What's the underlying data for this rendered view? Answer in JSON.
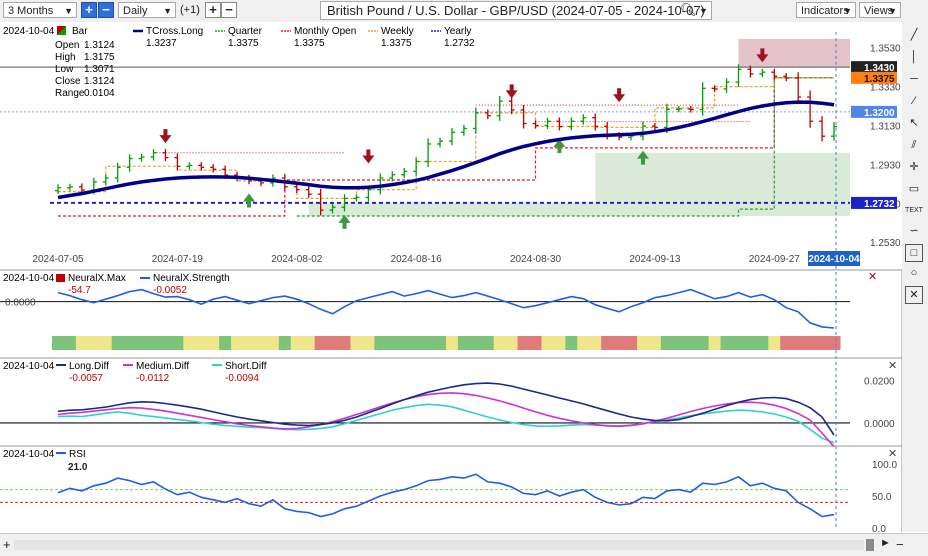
{
  "toolbar": {
    "range": "3 Months",
    "interval": "Daily",
    "offset": "(+1)",
    "title": "British Pound / U.S. Dollar - GBP/USD (2024-07-05 - 2024-10-07)",
    "indicators_label": "Indicators",
    "views_label": "Views"
  },
  "colors": {
    "up": "#00a000",
    "down": "#c00000",
    "tcross": "#00008b",
    "quarter": "#2e9d2e",
    "monthly": "#e02020",
    "weekly": "#f0a030",
    "yearly": "#2222cc"
  },
  "main": {
    "date": "2024-10-04",
    "bar_label": "Bar",
    "ohlc_labels": [
      "Open",
      "High",
      "Low",
      "Close",
      "Range"
    ],
    "ohlc_values": [
      "1.3124",
      "1.3175",
      "1.3071",
      "1.3124",
      "0.0104"
    ],
    "legend": [
      {
        "name": "TCross.Long",
        "value": "1.3237"
      },
      {
        "name": "Quarter",
        "value": "1.3375"
      },
      {
        "name": "Monthly Open",
        "value": "1.3375"
      },
      {
        "name": "Weekly",
        "value": "1.3375"
      },
      {
        "name": "Yearly",
        "value": "1.2732"
      }
    ],
    "price_ticks": [
      "1.3530",
      "1.3330",
      "1.3130",
      "1.2930",
      "1.2730",
      "1.2530"
    ],
    "tags": [
      "1.3430",
      "1.3375",
      "1.3200",
      "1.2732"
    ],
    "date_ticks": [
      "2024-07-05",
      "2024-07-19",
      "2024-08-02",
      "2024-08-16",
      "2024-08-30",
      "2024-09-13",
      "2024-09-27"
    ],
    "last_date": "2024-10-04"
  },
  "neural": {
    "date": "2024-10-04",
    "labels": [
      "NeuralX.Max",
      "NeuralX.Strength"
    ],
    "values": [
      "-54.7",
      "-0.0052"
    ],
    "tick": "0.0000"
  },
  "diff": {
    "date": "2024-10-04",
    "labels": [
      "Long.Diff",
      "Medium.Diff",
      "Short.Diff"
    ],
    "values": [
      "-0.0057",
      "-0.0112",
      "-0.0094"
    ],
    "ticks": [
      "0.0200",
      "0.0000"
    ]
  },
  "rsi": {
    "date": "2024-10-04",
    "label": "RSI",
    "value": "21.0",
    "ticks": [
      "100.0",
      "50.0",
      "0.0"
    ]
  },
  "chart_data": [
    {
      "type": "ohlc",
      "title": "British Pound / U.S. Dollar - GBP/USD (2024-07-05 - 2024-10-07)",
      "ylim": [
        1.249,
        1.359
      ],
      "x": [
        "07-05",
        "07-08",
        "07-09",
        "07-10",
        "07-11",
        "07-12",
        "07-15",
        "07-16",
        "07-17",
        "07-18",
        "07-19",
        "07-22",
        "07-23",
        "07-24",
        "07-25",
        "07-26",
        "07-29",
        "07-30",
        "07-31",
        "08-01",
        "08-02",
        "08-05",
        "08-06",
        "08-07",
        "08-08",
        "08-09",
        "08-12",
        "08-13",
        "08-14",
        "08-15",
        "08-16",
        "08-19",
        "08-20",
        "08-21",
        "08-22",
        "08-23",
        "08-26",
        "08-27",
        "08-28",
        "08-29",
        "08-30",
        "09-02",
        "09-03",
        "09-04",
        "09-05",
        "09-06",
        "09-09",
        "09-10",
        "09-11",
        "09-12",
        "09-13",
        "09-16",
        "09-17",
        "09-18",
        "09-19",
        "09-20",
        "09-23",
        "09-24",
        "09-25",
        "09-26",
        "09-27",
        "09-30",
        "10-01",
        "10-02",
        "10-03",
        "10-04"
      ],
      "close": [
        1.281,
        1.2815,
        1.2798,
        1.284,
        1.286,
        1.2915,
        1.296,
        1.2968,
        1.299,
        1.2965,
        1.292,
        1.2925,
        1.2915,
        1.2905,
        1.2875,
        1.286,
        1.2845,
        1.2835,
        1.286,
        1.2815,
        1.28,
        1.2777,
        1.2695,
        1.271,
        1.2755,
        1.276,
        1.28,
        1.286,
        1.2877,
        1.2894,
        1.2945,
        1.3035,
        1.305,
        1.3095,
        1.3115,
        1.3195,
        1.318,
        1.3255,
        1.321,
        1.314,
        1.313,
        1.3152,
        1.3124,
        1.3152,
        1.317,
        1.3126,
        1.308,
        1.307,
        1.3076,
        1.3127,
        1.312,
        1.3213,
        1.3215,
        1.3212,
        1.3321,
        1.3318,
        1.3353,
        1.3419,
        1.3395,
        1.3404,
        1.3383,
        1.3374,
        1.3276,
        1.3152,
        1.3075,
        1.3124
      ],
      "tcross_long": [
        1.276,
        1.277,
        1.278,
        1.2792,
        1.2805,
        1.2818,
        1.283,
        1.284,
        1.2848,
        1.2855,
        1.286,
        1.2863,
        1.2865,
        1.2866,
        1.2865,
        1.2863,
        1.2859,
        1.2853,
        1.2847,
        1.284,
        1.2833,
        1.2826,
        1.2818,
        1.2813,
        1.281,
        1.281,
        1.2813,
        1.2818,
        1.2826,
        1.2836,
        1.2848,
        1.2862,
        1.288,
        1.2898,
        1.2918,
        1.294,
        1.2962,
        1.2985,
        1.3005,
        1.3022,
        1.3036,
        1.3048,
        1.3058,
        1.3066,
        1.3072,
        1.3077,
        1.308,
        1.3082,
        1.3085,
        1.309,
        1.3098,
        1.3108,
        1.312,
        1.3134,
        1.315,
        1.3167,
        1.3185,
        1.3202,
        1.3218,
        1.323,
        1.324,
        1.3247,
        1.325,
        1.3249,
        1.3244,
        1.3237
      ],
      "levels": {
        "Quarter": 1.3375,
        "Monthly Open": 1.3375,
        "Weekly": 1.3375,
        "Yearly": 1.2732,
        "tags": [
          1.343,
          1.32
        ]
      }
    },
    {
      "type": "line",
      "title": "NeuralX",
      "series": [
        {
          "name": "NeuralX.Max",
          "last": -54.7
        },
        {
          "name": "NeuralX.Strength",
          "last": -0.0052,
          "values": [
            0.0018,
            0.0012,
            0.0004,
            -0.0002,
            0.0005,
            0.0012,
            0.002,
            0.0024,
            0.0016,
            0.0009,
            0.001,
            0.0004,
            -0.0005,
            0.0005,
            0.001,
            0.0003,
            -0.0004,
            0.0002,
            0.0008,
            0.0011,
            0.0005,
            -0.0004,
            -0.0015,
            -0.0024,
            -0.001,
            0.0002,
            0.0008,
            0.0014,
            0.002,
            0.0011,
            0.0016,
            0.0022,
            0.0015,
            0.0008,
            0.0012,
            0.0018,
            0.0011,
            0.0004,
            -0.0004,
            -0.0012,
            -0.0008,
            -0.0002,
            0.0004,
            0.001,
            0.0006,
            -0.0006,
            -0.0013,
            -0.002,
            -0.001,
            -0.0002,
            0.0008,
            0.0012,
            0.0018,
            0.0024,
            0.0015,
            0.0006,
            0.001,
            0.0018,
            0.0009,
            0.0014,
            0.0004,
            -0.0012,
            -0.002,
            -0.0042,
            -0.005,
            -0.0052
          ]
        }
      ]
    },
    {
      "type": "line",
      "title": "Diff",
      "ylim": [
        -0.009,
        0.025
      ],
      "series": [
        {
          "name": "Long.Diff",
          "values": [
            0.0055,
            0.006,
            0.0062,
            0.0068,
            0.0075,
            0.0085,
            0.0095,
            0.01,
            0.0098,
            0.0092,
            0.0084,
            0.0075,
            0.0065,
            0.0052,
            0.004,
            0.0028,
            0.0018,
            0.001,
            0.0002,
            -0.0006,
            -0.001,
            -0.0012,
            -0.0008,
            0.0,
            0.0012,
            0.0028,
            0.0048,
            0.0068,
            0.009,
            0.011,
            0.0128,
            0.0145,
            0.0158,
            0.017,
            0.018,
            0.0186,
            0.0188,
            0.0184,
            0.0174,
            0.016,
            0.0146,
            0.0132,
            0.0118,
            0.0104,
            0.009,
            0.0074,
            0.0058,
            0.0042,
            0.0028,
            0.0018,
            0.0012,
            0.001,
            0.0016,
            0.003,
            0.0046,
            0.0064,
            0.0082,
            0.0098,
            0.011,
            0.0118,
            0.012,
            0.0115,
            0.0098,
            0.0072,
            0.0028,
            -0.0057
          ]
        },
        {
          "name": "Medium.Diff",
          "values": [
            0.004,
            0.0046,
            0.005,
            0.0056,
            0.0062,
            0.0068,
            0.0072,
            0.007,
            0.0064,
            0.0056,
            0.0046,
            0.0036,
            0.0026,
            0.0016,
            0.0006,
            -0.0004,
            -0.0012,
            -0.0018,
            -0.0024,
            -0.0028,
            -0.0026,
            -0.0018,
            -0.0008,
            0.0006,
            0.0022,
            0.004,
            0.0058,
            0.0076,
            0.0094,
            0.011,
            0.0124,
            0.0134,
            0.014,
            0.0142,
            0.0138,
            0.013,
            0.0118,
            0.0104,
            0.0088,
            0.007,
            0.0052,
            0.0036,
            0.0022,
            0.001,
            0.0,
            -0.0008,
            -0.0014,
            -0.0016,
            -0.0012,
            -0.0004,
            0.0008,
            0.0022,
            0.0038,
            0.0054,
            0.0068,
            0.008,
            0.009,
            0.0096,
            0.0098,
            0.0094,
            0.0084,
            0.0068,
            0.0044,
            0.0014,
            -0.0048,
            -0.0112
          ]
        },
        {
          "name": "Short.Diff",
          "values": [
            0.003,
            0.0032,
            0.003,
            0.0038,
            0.0046,
            0.0052,
            0.0046,
            0.0036,
            0.003,
            0.0024,
            0.0016,
            0.001,
            0.0002,
            -0.0006,
            -0.0012,
            -0.0016,
            -0.002,
            -0.0022,
            -0.0026,
            -0.003,
            -0.0032,
            -0.003,
            -0.0026,
            -0.0018,
            -0.0004,
            0.0012,
            0.0028,
            0.0044,
            0.006,
            0.0072,
            0.0082,
            0.0088,
            0.0084,
            0.0076,
            0.006,
            0.0044,
            0.0028,
            0.0014,
            0.0002,
            -0.0008,
            -0.0014,
            -0.0016,
            -0.0014,
            -0.001,
            -0.0008,
            -0.001,
            -0.0012,
            -0.0014,
            -0.001,
            -0.0002,
            0.0006,
            0.0014,
            0.0024,
            0.0034,
            0.0042,
            0.005,
            0.0056,
            0.006,
            0.0058,
            0.0052,
            0.0042,
            0.0028,
            0.0008,
            -0.003,
            -0.0072,
            -0.0094
          ]
        }
      ]
    },
    {
      "type": "line",
      "title": "RSI",
      "ylim": [
        0,
        100
      ],
      "series": [
        {
          "name": "RSI",
          "values": [
            55,
            62,
            58,
            66,
            70,
            78,
            74,
            68,
            72,
            61,
            52,
            56,
            48,
            44,
            40,
            46,
            38,
            34,
            44,
            30,
            26,
            24,
            18,
            22,
            30,
            34,
            42,
            50,
            56,
            60,
            66,
            74,
            76,
            80,
            78,
            84,
            72,
            70,
            64,
            54,
            52,
            58,
            50,
            56,
            60,
            48,
            40,
            36,
            38,
            48,
            46,
            58,
            60,
            56,
            70,
            68,
            72,
            80,
            66,
            70,
            62,
            58,
            40,
            30,
            18,
            21
          ]
        }
      ],
      "reference_lines": [
        60,
        40
      ]
    }
  ]
}
